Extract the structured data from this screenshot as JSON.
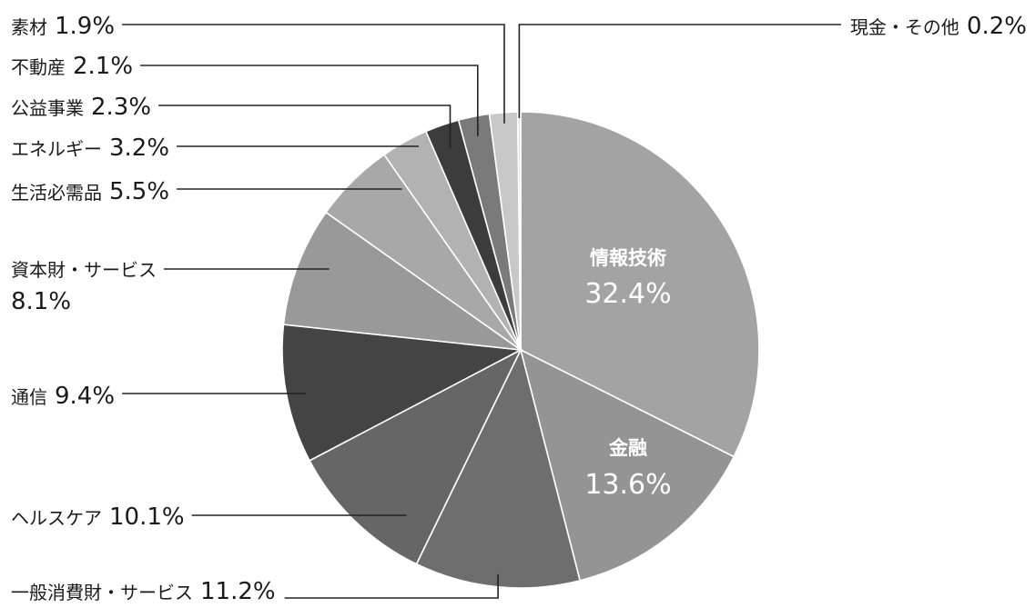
{
  "chart_data": {
    "type": "pie",
    "slices": [
      {
        "label": "情報技術",
        "value": 32.4,
        "display": "32.4%",
        "color": "#a3a3a3"
      },
      {
        "label": "金融",
        "value": 13.6,
        "display": "13.6%",
        "color": "#949494"
      },
      {
        "label": "一般消費財・サービス",
        "value": 11.2,
        "display": "11.2%",
        "color": "#6e6e6e"
      },
      {
        "label": "ヘルスケア",
        "value": 10.1,
        "display": "10.1%",
        "color": "#666666"
      },
      {
        "label": "通信",
        "value": 9.4,
        "display": "9.4%",
        "color": "#444444"
      },
      {
        "label": "資本財・サービス",
        "value": 8.1,
        "display": "8.1%",
        "color": "#999999"
      },
      {
        "label": "生活必需品",
        "value": 5.5,
        "display": "5.5%",
        "color": "#a8a8a8"
      },
      {
        "label": "エネルギー",
        "value": 3.2,
        "display": "3.2%",
        "color": "#b2b2b2"
      },
      {
        "label": "公益事業",
        "value": 2.3,
        "display": "2.3%",
        "color": "#3c3c3c"
      },
      {
        "label": "不動産",
        "value": 2.1,
        "display": "2.1%",
        "color": "#7a7a7a"
      },
      {
        "label": "素材",
        "value": 1.9,
        "display": "1.9%",
        "color": "#c8c8c8"
      },
      {
        "label": "現金・その他",
        "value": 0.2,
        "display": "0.2%",
        "color": "#e4e4e4"
      }
    ]
  }
}
